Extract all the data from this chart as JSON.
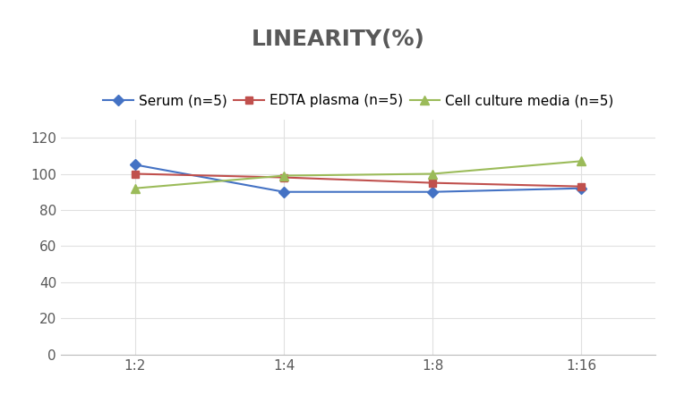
{
  "title": "LINEARITY(%)",
  "x_labels": [
    "1:2",
    "1:4",
    "1:8",
    "1:16"
  ],
  "x_positions": [
    0,
    1,
    2,
    3
  ],
  "series": [
    {
      "label": "Serum (n=5)",
      "values": [
        105,
        90,
        90,
        92
      ],
      "color": "#4472C4",
      "marker": "D",
      "markersize": 6
    },
    {
      "label": "EDTA plasma (n=5)",
      "values": [
        100,
        98,
        95,
        93
      ],
      "color": "#C0504D",
      "marker": "s",
      "markersize": 6
    },
    {
      "label": "Cell culture media (n=5)",
      "values": [
        92,
        99,
        100,
        107
      ],
      "color": "#9BBB59",
      "marker": "^",
      "markersize": 7
    }
  ],
  "ylim": [
    0,
    130
  ],
  "yticks": [
    0,
    20,
    40,
    60,
    80,
    100,
    120
  ],
  "background_color": "#FFFFFF",
  "title_fontsize": 18,
  "legend_fontsize": 11,
  "tick_fontsize": 11,
  "title_color": "#595959"
}
